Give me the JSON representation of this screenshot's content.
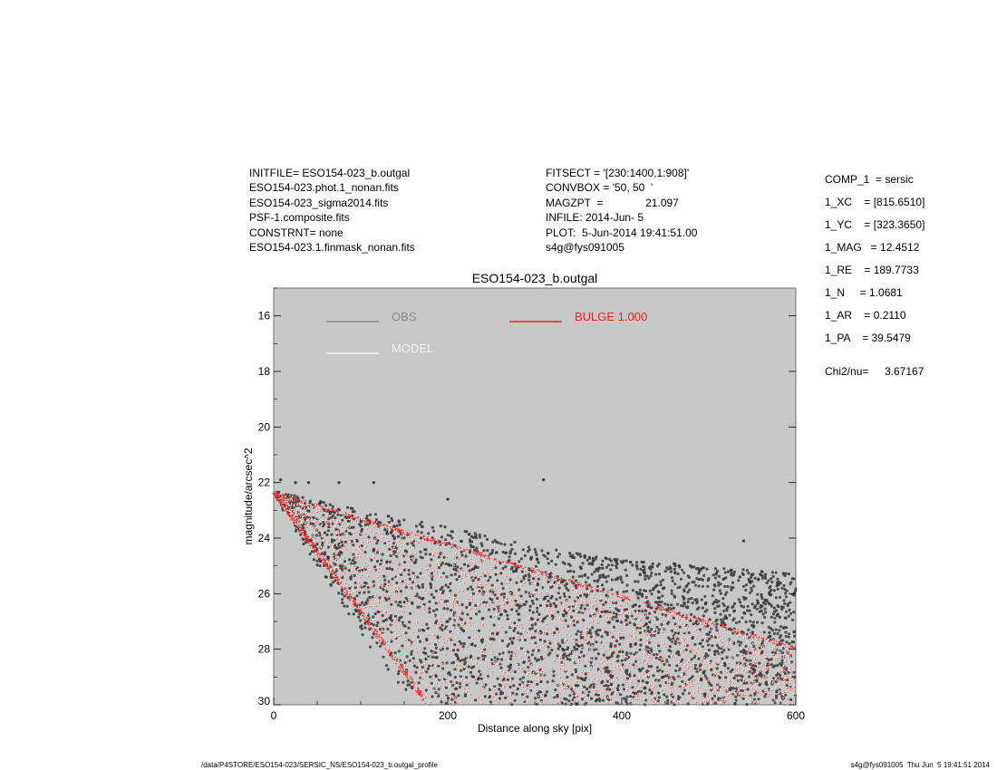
{
  "header_left": [
    "INITFILE= ESO154-023_b.outgal",
    "ESO154-023.phot.1_nonan.fits",
    "ESO154-023_sigma2014.fits",
    "PSF-1.composite.fits",
    "CONSTRNT= none",
    "ESO154-023.1.finmask_nonan.fits"
  ],
  "header_mid": [
    "FITSECT = '[230:1400,1:908]'",
    "CONVBOX = '50, 50  '",
    "MAGZPT  =              21.097",
    "INFILE: 2014-Jun- 5",
    "PLOT:  5-Jun-2014 19:41:51.00",
    "s4g@fys091005"
  ],
  "components": [
    "COMP_1  = sersic",
    "1_XC    = [815.6510]",
    "1_YC    = [323.3650]",
    "1_MAG   = 12.4512",
    "1_RE    = 189.7733",
    "1_N     = 1.0681",
    "1_AR    = 0.2110",
    "1_PA    = 39.5479"
  ],
  "chi2_label": "Chi2/nu=",
  "chi2_value": "3.67167",
  "footer_left": "/data/P4STORE/ESO154-023/SERSIC_NS/ESO154-023_b.outgal_profile",
  "footer_right": "s4g@fys091005  Thu Jun  5 19:41:51 2014",
  "colors": {
    "plot_bg": "#c8c8c8",
    "obs": "#3a3a3a",
    "obs_legend": "#8a8a8a",
    "model": "#f2f2f2",
    "bulge": "#ff1a1a"
  },
  "chart_data": {
    "type": "scatter",
    "title": "ESO154-023_b.outgal",
    "xlabel": "Distance along sky [pix]",
    "ylabel": "magnitude/arcsec^2",
    "xlim": [
      0,
      600
    ],
    "ylim": [
      30,
      15
    ],
    "y_inverted": true,
    "x_ticks": [
      0,
      200,
      400,
      600
    ],
    "y_ticks": [
      16,
      18,
      20,
      22,
      24,
      26,
      28,
      30
    ],
    "legend": [
      {
        "name": "OBS",
        "series": "obs"
      },
      {
        "name": "MODEL",
        "series": "model"
      },
      {
        "name": "BULGE  1.000",
        "series": "bulge"
      }
    ],
    "legend_placement": "top",
    "series": [
      {
        "name": "OBS",
        "kind": "points",
        "description_x_range": [
          0,
          600
        ],
        "upper_envelope": [
          [
            0,
            22.3
          ],
          [
            100,
            23.0
          ],
          [
            200,
            23.6
          ],
          [
            300,
            24.3
          ],
          [
            400,
            24.8
          ],
          [
            500,
            25.0
          ],
          [
            600,
            25.3
          ]
        ],
        "lower_envelope": [
          [
            0,
            22.5
          ],
          [
            100,
            27.5
          ],
          [
            150,
            29.5
          ],
          [
            200,
            30.0
          ],
          [
            600,
            30.0
          ]
        ],
        "outliers": [
          [
            8,
            21.9
          ],
          [
            25,
            22.0
          ],
          [
            40,
            22.0
          ],
          [
            75,
            22.0
          ],
          [
            115,
            22.0
          ],
          [
            200,
            22.6
          ],
          [
            310,
            21.9
          ],
          [
            540,
            24.1
          ]
        ]
      },
      {
        "name": "BULGE  1.000",
        "kind": "wedge",
        "upper_edge": [
          [
            0,
            22.3
          ],
          [
            600,
            27.9
          ]
        ],
        "lower_edge": [
          [
            0,
            22.5
          ],
          [
            175,
            30.0
          ]
        ]
      }
    ]
  }
}
